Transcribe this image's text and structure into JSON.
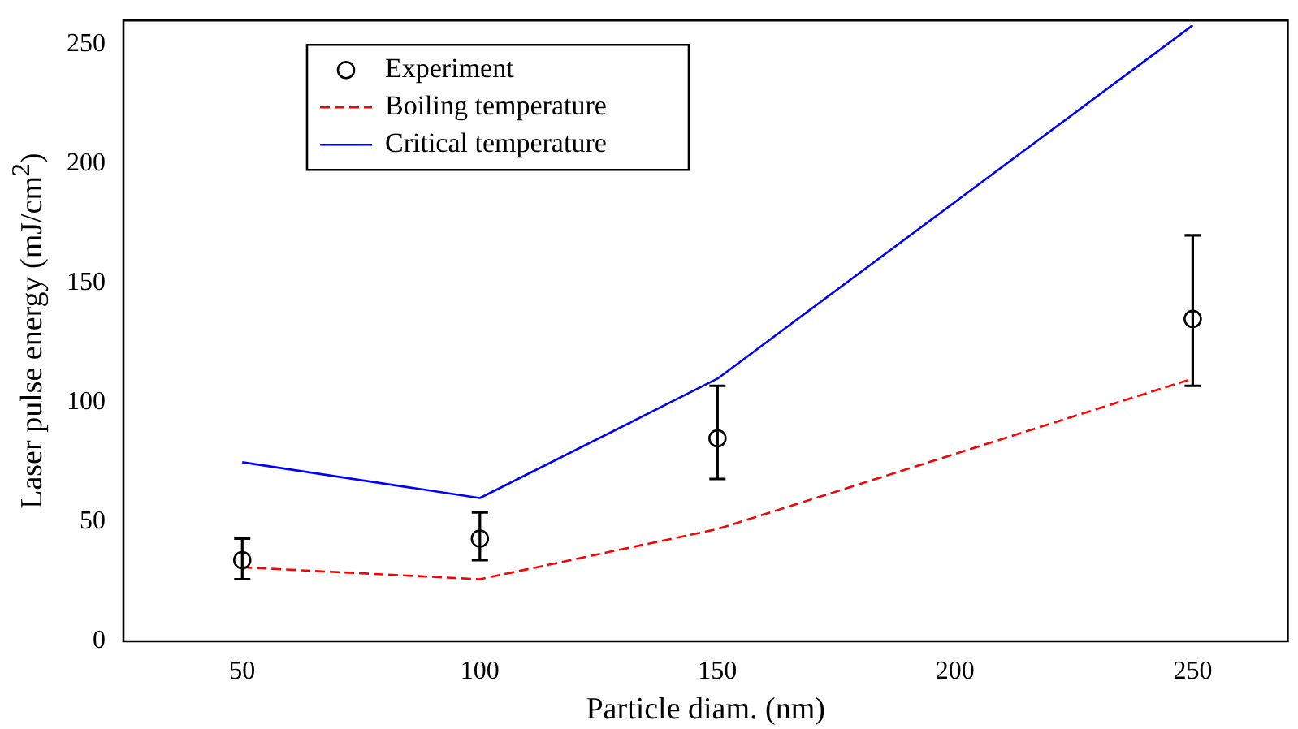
{
  "chart_data": {
    "type": "line",
    "xlabel": "Particle diam. (nm)",
    "ylabel": "Laser pulse energy (mJ/cm$^{2}$)",
    "xlim": [
      25,
      270
    ],
    "xticks": [
      50,
      100,
      150,
      200,
      250
    ],
    "ylim": [
      0,
      260
    ],
    "yticks": [
      0,
      50,
      100,
      150,
      200,
      250
    ],
    "legend": "top left",
    "grid": false,
    "series": [
      {
        "name": "Experiment",
        "type": "scatter",
        "color": "#000000",
        "marker": "circle",
        "x": [
          50,
          100,
          150,
          250
        ],
        "values": [
          34,
          43,
          85,
          135
        ],
        "errors": [
          [
            26,
            43
          ],
          [
            34,
            54
          ],
          [
            68,
            107
          ],
          [
            107,
            170
          ]
        ]
      },
      {
        "name": "Boiling temperature",
        "type": "line",
        "color": "#ff0000",
        "line_style": "dashed",
        "marker": "none",
        "x": [
          50,
          100,
          150,
          250
        ],
        "values": [
          31,
          26,
          47,
          110
        ]
      },
      {
        "name": "Critical temperature",
        "type": "line",
        "color": "#0000ff",
        "line_style": "solid",
        "marker": "none",
        "x": [
          50,
          100,
          150,
          250
        ],
        "values": [
          75,
          60,
          110,
          258
        ]
      }
    ]
  }
}
